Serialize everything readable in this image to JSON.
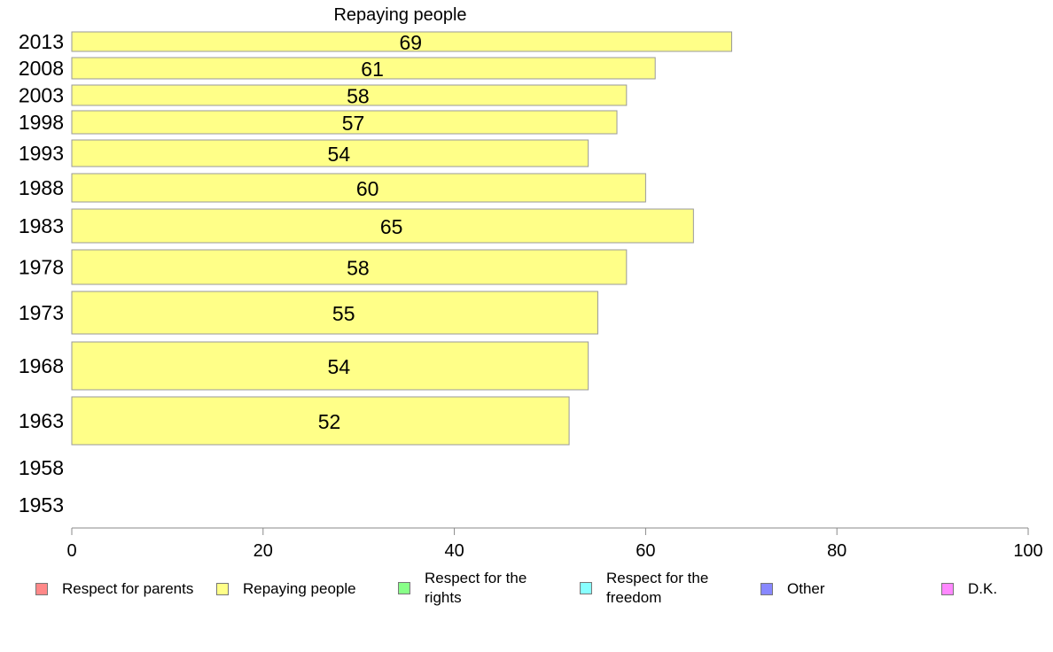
{
  "chart_data": {
    "type": "bar",
    "orientation": "horizontal",
    "title": "Repaying people",
    "categories": [
      "2013",
      "2008",
      "2003",
      "1998",
      "1993",
      "1988",
      "1983",
      "1978",
      "1973",
      "1968",
      "1963",
      "1958",
      "1953"
    ],
    "series": [
      {
        "name": "Repaying people",
        "values": [
          69,
          61,
          58,
          57,
          54,
          60,
          65,
          58,
          55,
          54,
          52,
          null,
          null
        ],
        "data_labels": [
          "69",
          "61",
          "58",
          "57",
          "54",
          "60",
          "65",
          "58",
          "55",
          "54",
          "52",
          "",
          ""
        ],
        "color": "#ffff88"
      }
    ],
    "xlim": [
      0,
      100
    ],
    "xticks": [
      "0",
      "20",
      "40",
      "60",
      "80",
      "100"
    ],
    "xlabel": "",
    "ylabel": "",
    "grid": false,
    "legend_position": "bottom",
    "legend": [
      {
        "label": "Respect for parents",
        "color": "#ff8888"
      },
      {
        "label": "Repaying people",
        "color": "#ffff88"
      },
      {
        "label": "Respect for the rights",
        "color": "#88ff88"
      },
      {
        "label": "Respect for the freedom",
        "color": "#88ffff"
      },
      {
        "label": "Other",
        "color": "#8888ff"
      },
      {
        "label": "D.K.",
        "color": "#ff88ff"
      }
    ]
  }
}
